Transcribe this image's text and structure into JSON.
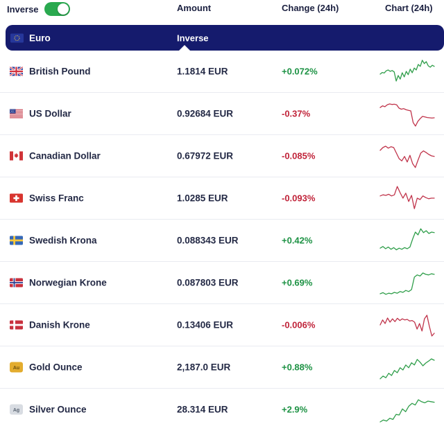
{
  "colors": {
    "navy": "#151b6d",
    "green": "#1d9244",
    "red": "#c02339",
    "toggle_green": "#2aa94f",
    "row_border": "#e9ebf1"
  },
  "topbar": {
    "inverse_label": "Inverse",
    "toggle_state": "on",
    "amount_header": "Amount",
    "change_header": "Change (24h)",
    "chart_header": "Chart (24h)"
  },
  "base_row": {
    "flag": "eu",
    "currency": "Euro",
    "inverse_label": "Inverse"
  },
  "rows": [
    {
      "flag": "gb",
      "name": "British Pound",
      "amount": "1.1814 EUR",
      "change": "+0.072%",
      "direction": "up",
      "spark": [
        40,
        46,
        44,
        52,
        55,
        50,
        53,
        48,
        15,
        35,
        22,
        45,
        30,
        50,
        38,
        58,
        45,
        62,
        55,
        75,
        68,
        90,
        78,
        85,
        70,
        65,
        72,
        68
      ]
    },
    {
      "flag": "us",
      "name": "US Dollar",
      "amount": "0.92684 EUR",
      "change": "-0.37%",
      "direction": "down",
      "spark": [
        72,
        78,
        75,
        82,
        85,
        83,
        84,
        82,
        70,
        66,
        68,
        64,
        62,
        60,
        18,
        5,
        22,
        32,
        40,
        38,
        36,
        35,
        34,
        35
      ]
    },
    {
      "flag": "ca",
      "name": "Canadian Dollar",
      "amount": "0.67972 EUR",
      "change": "-0.085%",
      "direction": "down",
      "spark": [
        70,
        80,
        85,
        78,
        83,
        80,
        60,
        40,
        32,
        48,
        28,
        52,
        22,
        8,
        35,
        60,
        68,
        62,
        55,
        50,
        48
      ]
    },
    {
      "flag": "ch",
      "name": "Swiss Franc",
      "amount": "1.0285 EUR",
      "change": "-0.093%",
      "direction": "down",
      "spark": [
        58,
        62,
        60,
        64,
        58,
        62,
        92,
        70,
        50,
        68,
        38,
        60,
        12,
        50,
        45,
        58,
        52,
        48,
        50,
        50
      ]
    },
    {
      "flag": "se",
      "name": "Swedish Krona",
      "amount": "0.088343 EUR",
      "change": "+0.42%",
      "direction": "up",
      "spark": [
        22,
        28,
        20,
        26,
        18,
        24,
        16,
        22,
        18,
        24,
        20,
        26,
        55,
        80,
        70,
        92,
        78,
        85,
        75,
        80,
        78
      ]
    },
    {
      "flag": "no",
      "name": "Norwegian Krone",
      "amount": "0.087803 EUR",
      "change": "+0.69%",
      "direction": "up",
      "spark": [
        10,
        14,
        8,
        12,
        10,
        15,
        12,
        18,
        15,
        22,
        18,
        25,
        70,
        78,
        74,
        85,
        80,
        78,
        82,
        80
      ]
    },
    {
      "flag": "dk",
      "name": "Danish Krone",
      "amount": "0.13406 EUR",
      "change": "-0.006%",
      "direction": "down",
      "spark": [
        50,
        68,
        55,
        75,
        60,
        72,
        62,
        74,
        66,
        72,
        68,
        70,
        64,
        66,
        60,
        35,
        55,
        28,
        72,
        85,
        45,
        10,
        20
      ]
    },
    {
      "flag": "au",
      "name": "Gold Ounce",
      "amount": "2,187.0 EUR",
      "change": "+0.88%",
      "direction": "up",
      "spark": [
        8,
        18,
        12,
        28,
        20,
        38,
        30,
        48,
        40,
        58,
        48,
        66,
        58,
        78,
        68,
        55,
        65,
        72,
        80,
        75
      ]
    },
    {
      "flag": "ag",
      "name": "Silver Ounce",
      "amount": "28.314 EUR",
      "change": "+2.9%",
      "direction": "up",
      "spark": [
        5,
        12,
        8,
        18,
        14,
        32,
        30,
        52,
        42,
        62,
        72,
        66,
        85,
        78,
        74,
        80,
        78,
        76
      ]
    }
  ]
}
